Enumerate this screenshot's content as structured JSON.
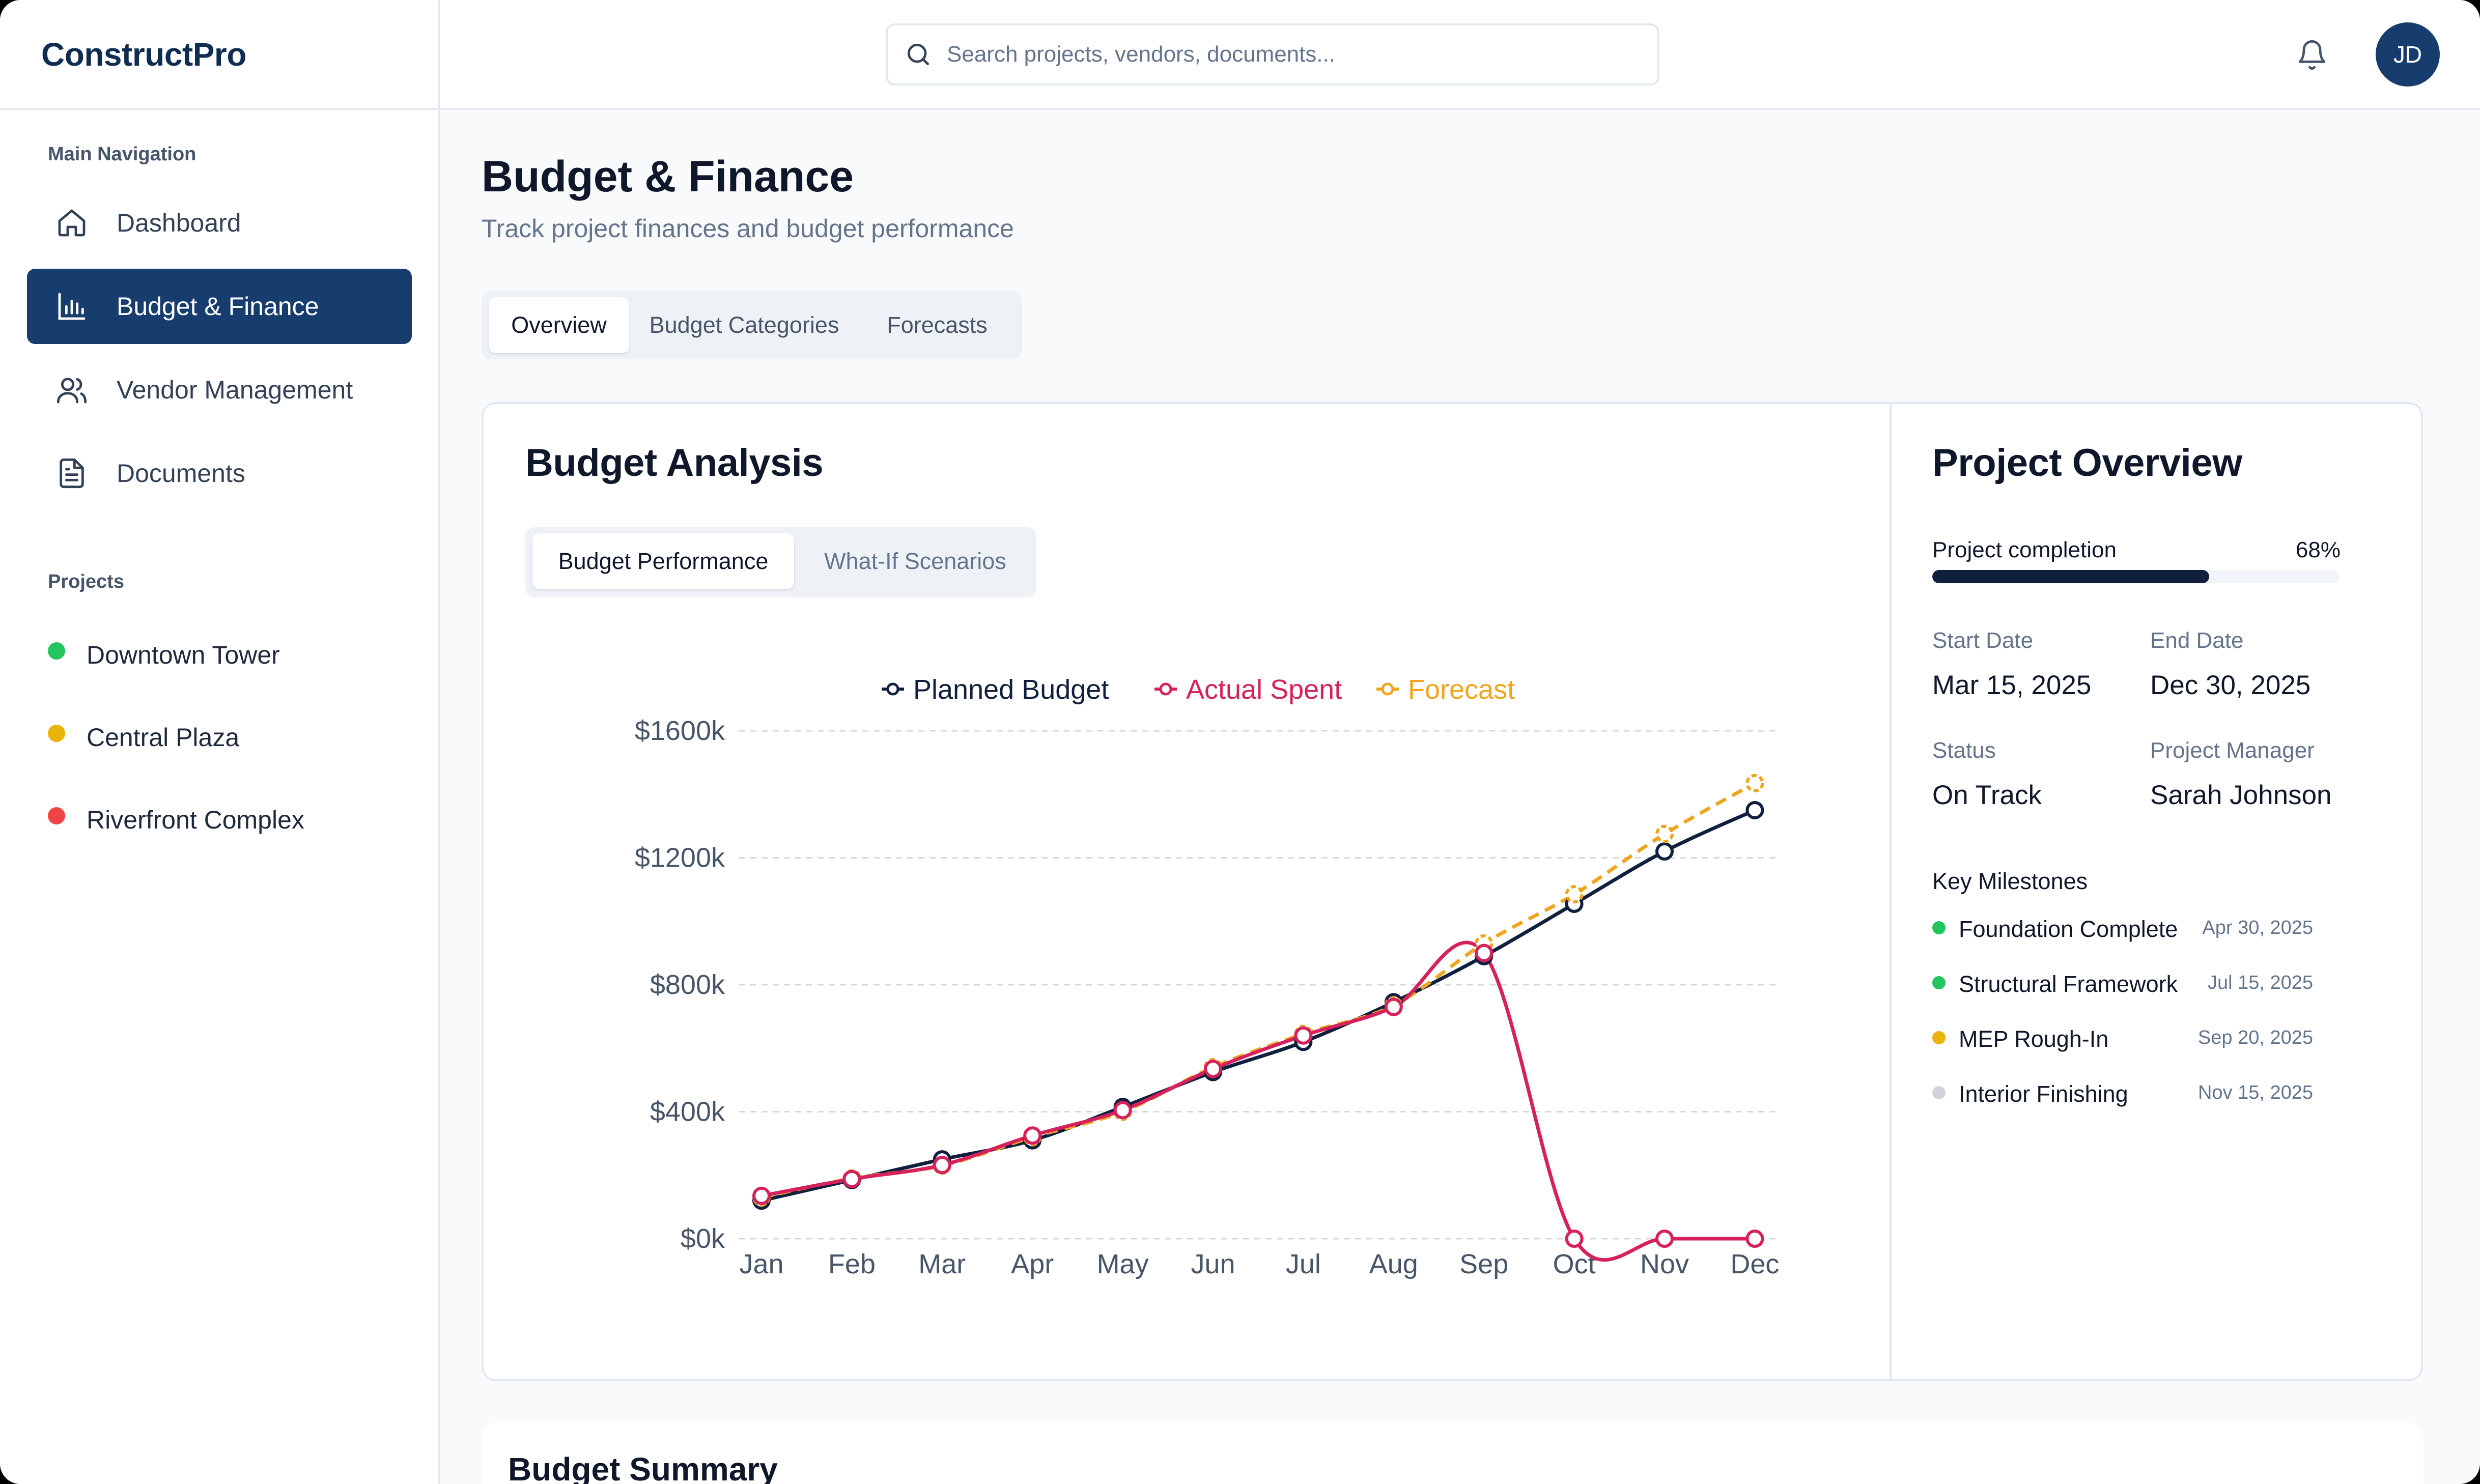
{
  "app": {
    "brand": "ConstructPro"
  },
  "header": {
    "search_placeholder": "Search projects, vendors, documents...",
    "avatar_initials": "JD"
  },
  "sidebar": {
    "main_nav_label": "Main Navigation",
    "items": [
      {
        "label": "Dashboard",
        "icon": "home-icon",
        "active": false
      },
      {
        "label": "Budget & Finance",
        "icon": "bar-chart-icon",
        "active": true
      },
      {
        "label": "Vendor Management",
        "icon": "users-icon",
        "active": false
      },
      {
        "label": "Documents",
        "icon": "document-icon",
        "active": false
      }
    ],
    "projects_label": "Projects",
    "projects": [
      {
        "name": "Downtown Tower",
        "status_color": "#22c55e"
      },
      {
        "name": "Central Plaza",
        "status_color": "#eab308"
      },
      {
        "name": "Riverfront Complex",
        "status_color": "#ef4444"
      }
    ]
  },
  "page": {
    "title": "Budget & Finance",
    "subtitle": "Track project finances and budget performance",
    "tabs": [
      "Overview",
      "Budget Categories",
      "Forecasts"
    ],
    "active_tab": "Overview"
  },
  "analysis": {
    "title": "Budget Analysis",
    "subtabs": [
      "Budget Performance",
      "What-If Scenarios"
    ],
    "active_subtab": "Budget Performance"
  },
  "chart_data": {
    "type": "line",
    "categories": [
      "Jan",
      "Feb",
      "Mar",
      "Apr",
      "May",
      "Jun",
      "Jul",
      "Aug",
      "Sep",
      "Oct",
      "Nov",
      "Dec"
    ],
    "series": [
      {
        "name": "Planned Budget",
        "color": "#0f1f3d",
        "dashed": false,
        "values": [
          120,
          185,
          250,
          310,
          415,
          525,
          620,
          745,
          890,
          1055,
          1220,
          1350
        ]
      },
      {
        "name": "Actual Spent",
        "color": "#d6215c",
        "dashed": false,
        "values": [
          135,
          188,
          232,
          325,
          405,
          535,
          640,
          730,
          900,
          0,
          0,
          0
        ]
      },
      {
        "name": "Forecast",
        "color": "#f0a51f",
        "dashed": true,
        "values": [
          130,
          190,
          230,
          320,
          400,
          540,
          645,
          735,
          930,
          1085,
          1275,
          1435
        ]
      }
    ],
    "y_ticks": [
      "$0k",
      "$400k",
      "$800k",
      "$1200k",
      "$1600k"
    ],
    "ylim": [
      0,
      1600
    ],
    "grid": true,
    "legend": "top-center"
  },
  "overview": {
    "title": "Project Overview",
    "completion_label": "Project completion",
    "completion_pct": "68%",
    "completion_value": 0.68,
    "fields": [
      {
        "label": "Start Date",
        "value": "Mar 15, 2025"
      },
      {
        "label": "End Date",
        "value": "Dec 30, 2025"
      },
      {
        "label": "Status",
        "value": "On Track"
      },
      {
        "label": "Project Manager",
        "value": "Sarah Johnson"
      }
    ],
    "milestones_title": "Key Milestones",
    "milestones": [
      {
        "name": "Foundation Complete",
        "date": "Apr 30, 2025",
        "color": "#22c55e"
      },
      {
        "name": "Structural Framework",
        "date": "Jul 15, 2025",
        "color": "#22c55e"
      },
      {
        "name": "MEP Rough-In",
        "date": "Sep 20, 2025",
        "color": "#eab308"
      },
      {
        "name": "Interior Finishing",
        "date": "Nov 15, 2025",
        "color": "#d1d5db"
      }
    ]
  },
  "summary": {
    "title": "Budget Summary"
  }
}
